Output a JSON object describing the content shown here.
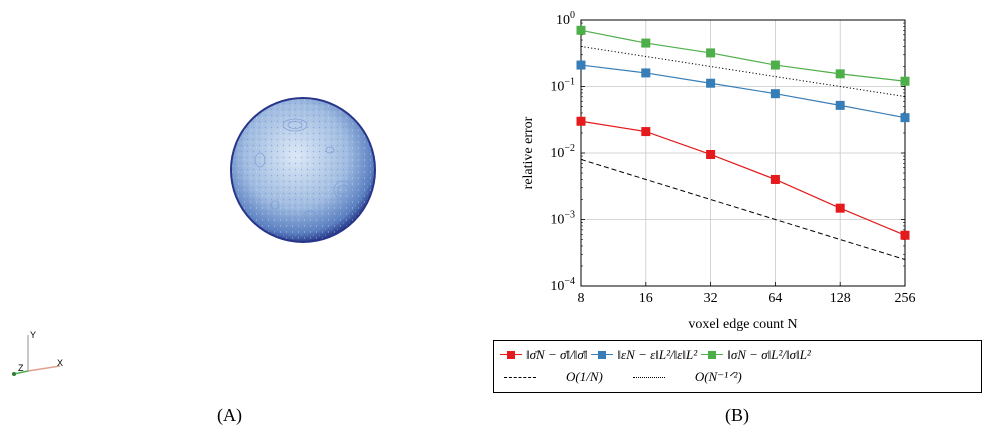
{
  "panels": {
    "left_caption": "(A)",
    "right_caption": "(B)"
  },
  "axes_triad": {
    "x": "X",
    "y": "Y",
    "z": "Z"
  },
  "chart_data": {
    "type": "line",
    "xscale": "log2",
    "yscale": "log",
    "xlabel": "voxel edge count N",
    "ylabel": "relative error",
    "x": [
      8,
      16,
      32,
      64,
      128,
      256
    ],
    "xticks": [
      "8",
      "16",
      "32",
      "64",
      "128",
      "256"
    ],
    "yticks": [
      "10^-4",
      "10^-3",
      "10^-2",
      "10^-1",
      "10^0"
    ],
    "ylim": [
      0.0001,
      1
    ],
    "xlim": [
      8,
      256
    ],
    "grid": true,
    "series": [
      {
        "name": "‖σ̄_N − σ̄‖/‖σ̄‖",
        "color": "#e41a1c",
        "marker": "square",
        "style": "solid",
        "values": [
          0.03,
          0.021,
          0.0095,
          0.004,
          0.00148,
          0.00058
        ]
      },
      {
        "name": "‖ε_N − ε‖_L²/‖ε‖_L²",
        "color": "#377eb8",
        "marker": "square",
        "style": "solid",
        "values": [
          0.21,
          0.16,
          0.112,
          0.078,
          0.052,
          0.034
        ]
      },
      {
        "name": "‖σ_N − σ‖_L²/‖σ‖_L²",
        "color": "#4daf4a",
        "marker": "square",
        "style": "solid",
        "values": [
          0.7,
          0.45,
          0.32,
          0.21,
          0.155,
          0.12
        ]
      },
      {
        "name": "O(1/N)",
        "color": "#000000",
        "marker": "none",
        "style": "dashed",
        "values": [
          0.008,
          0.004,
          0.002,
          0.001,
          0.0005,
          0.00025
        ]
      },
      {
        "name": "O(N^−1/2)",
        "color": "#000000",
        "marker": "none",
        "style": "dotted",
        "values": [
          0.4,
          0.283,
          0.2,
          0.141,
          0.1,
          0.0707
        ]
      }
    ],
    "legend": {
      "placement": "below",
      "row1": [
        {
          "label": "‖σ̄N − σ̄‖/‖σ̄‖"
        },
        {
          "label": "‖εN − ε‖L²/‖ε‖L²"
        },
        {
          "label": "‖σN − σ‖L²/‖σ‖L²"
        }
      ],
      "row2": [
        {
          "label": "O(1/N)"
        },
        {
          "label": "O(N⁻¹ᐟ²)"
        }
      ]
    }
  }
}
